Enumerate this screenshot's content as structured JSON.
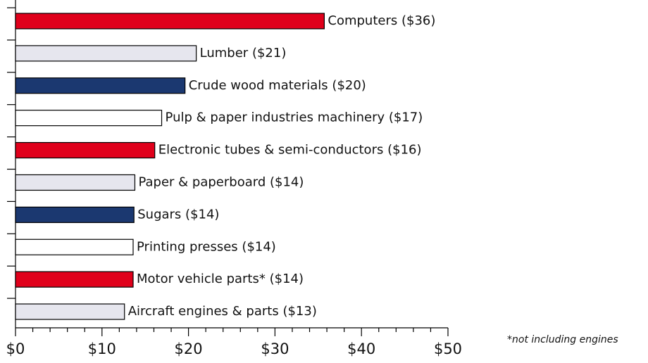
{
  "chart_data": {
    "type": "bar",
    "orientation": "horizontal",
    "categories": [
      "Computers",
      "Lumber",
      "Crude wood materials",
      "Pulp & paper industries machinery",
      "Electronic tubes & semi-conductors",
      "Paper & paperboard",
      "Sugars",
      "Printing presses",
      "Motor vehicle parts*",
      "Aircraft engines & parts"
    ],
    "values": [
      35.7,
      20.9,
      19.6,
      16.9,
      16.1,
      13.8,
      13.7,
      13.6,
      13.6,
      12.6
    ],
    "value_labels": [
      "($36)",
      "($21)",
      "($20)",
      "($17)",
      "($16)",
      "($14)",
      "($14)",
      "($14)",
      "($14)",
      "($13)"
    ],
    "colors": [
      "#e0001b",
      "#e6e6ee",
      "#1b3870",
      "#ffffff",
      "#e0001b",
      "#e6e6ee",
      "#1b3870",
      "#ffffff",
      "#e0001b",
      "#e6e6ee"
    ],
    "xlim": [
      0,
      50
    ],
    "xticks": [
      {
        "value": 0,
        "label": "$0"
      },
      {
        "value": 10,
        "label": "$10"
      },
      {
        "value": 20,
        "label": "$20"
      },
      {
        "value": 30,
        "label": "$30"
      },
      {
        "value": 40,
        "label": "$40"
      },
      {
        "value": 50,
        "label": "$50"
      }
    ],
    "xminorticks": [
      2,
      4,
      6,
      8,
      12,
      14,
      16,
      18,
      22,
      24,
      26,
      28,
      32,
      34,
      36,
      38,
      42,
      44,
      46,
      48
    ],
    "annotation": "*not including engines"
  }
}
